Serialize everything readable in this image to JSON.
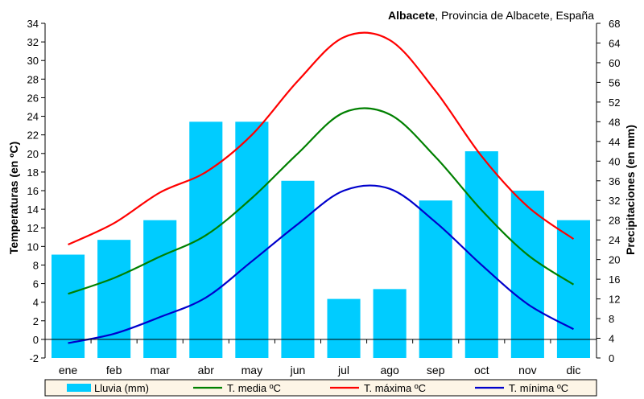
{
  "chart_data": {
    "type": "bar",
    "title_bold": "Albacete",
    "title_rest": ", Provincia de Albacete, España",
    "ylabel_left": "Temperaturas (en ºC)",
    "ylabel_right": "Precipitaciones (en mm)",
    "ylim_left": [
      -2,
      34
    ],
    "ylim_right": [
      0,
      68
    ],
    "left_ticks": [
      -2,
      0,
      2,
      4,
      6,
      8,
      10,
      12,
      14,
      16,
      18,
      20,
      22,
      24,
      26,
      28,
      30,
      32,
      34
    ],
    "right_ticks": [
      0,
      4,
      8,
      12,
      16,
      20,
      24,
      28,
      32,
      36,
      40,
      44,
      48,
      52,
      56,
      60,
      64,
      68
    ],
    "categories": [
      "ene",
      "feb",
      "mar",
      "abr",
      "may",
      "jun",
      "jul",
      "ago",
      "sep",
      "oct",
      "nov",
      "dic"
    ],
    "bars": {
      "name": "Lluvia (mm)",
      "color": "#00ccff",
      "values": [
        21,
        24,
        28,
        48,
        48,
        36,
        12,
        14,
        32,
        42,
        34,
        28
      ]
    },
    "series": [
      {
        "name": "T. media ºC",
        "color": "#008000",
        "values": [
          4.9,
          6.6,
          8.9,
          11.2,
          15.2,
          20.0,
          24.4,
          24.2,
          19.6,
          13.9,
          9.1,
          5.9
        ]
      },
      {
        "name": "T. máxima ºC",
        "color": "#ff0000",
        "values": [
          10.2,
          12.5,
          15.8,
          18.0,
          22.0,
          27.8,
          32.5,
          32.2,
          26.7,
          19.7,
          14.3,
          10.8
        ]
      },
      {
        "name": "T. mínima ºC",
        "color": "#0000cc",
        "values": [
          -0.4,
          0.6,
          2.4,
          4.5,
          8.4,
          12.4,
          16.0,
          16.2,
          12.6,
          8.0,
          3.8,
          1.1
        ]
      }
    ],
    "grid": false,
    "legend_position": "bottom"
  }
}
